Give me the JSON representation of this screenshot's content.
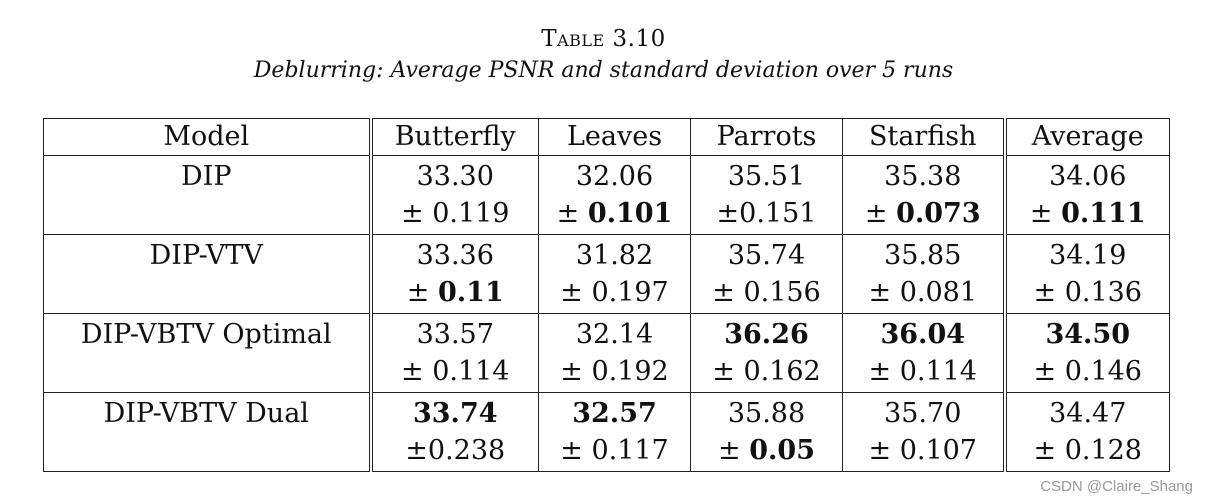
{
  "caption": {
    "label": "Table 3.10",
    "text": "Deblurring: Average PSNR and standard deviation over 5 runs"
  },
  "table": {
    "columns": [
      "Model",
      "Butterfly",
      "Leaves",
      "Parrots",
      "Starfish",
      "Average"
    ],
    "rows": [
      {
        "model": "DIP",
        "cells": [
          {
            "value": "33.30",
            "value_bold": false,
            "sd": "± 0.119",
            "sd_bold": false,
            "sd_pm": "",
            "sd_num": ""
          },
          {
            "value": "32.06",
            "value_bold": false,
            "sd": "",
            "sd_bold": true,
            "sd_pm": "± ",
            "sd_num": "0.101"
          },
          {
            "value": "35.51",
            "value_bold": false,
            "sd": "±0.151",
            "sd_bold": false,
            "sd_pm": "",
            "sd_num": ""
          },
          {
            "value": "35.38",
            "value_bold": false,
            "sd": "",
            "sd_bold": true,
            "sd_pm": "± ",
            "sd_num": "0.073"
          },
          {
            "value": "34.06",
            "value_bold": false,
            "sd": "",
            "sd_bold": true,
            "sd_pm": "± ",
            "sd_num": "0.111"
          }
        ]
      },
      {
        "model": "DIP-VTV",
        "cells": [
          {
            "value": "33.36",
            "value_bold": false,
            "sd": "",
            "sd_bold": true,
            "sd_pm": "± ",
            "sd_num": "0.11"
          },
          {
            "value": "31.82",
            "value_bold": false,
            "sd": "± 0.197",
            "sd_bold": false,
            "sd_pm": "",
            "sd_num": ""
          },
          {
            "value": "35.74",
            "value_bold": false,
            "sd": "± 0.156",
            "sd_bold": false,
            "sd_pm": "",
            "sd_num": ""
          },
          {
            "value": "35.85",
            "value_bold": false,
            "sd": "± 0.081",
            "sd_bold": false,
            "sd_pm": "",
            "sd_num": ""
          },
          {
            "value": "34.19",
            "value_bold": false,
            "sd": "± 0.136",
            "sd_bold": false,
            "sd_pm": "",
            "sd_num": ""
          }
        ]
      },
      {
        "model": "DIP-VBTV Optimal",
        "cells": [
          {
            "value": "33.57",
            "value_bold": false,
            "sd": "± 0.114",
            "sd_bold": false,
            "sd_pm": "",
            "sd_num": ""
          },
          {
            "value": "32.14",
            "value_bold": false,
            "sd": "± 0.192",
            "sd_bold": false,
            "sd_pm": "",
            "sd_num": ""
          },
          {
            "value": "36.26",
            "value_bold": true,
            "sd": "± 0.162",
            "sd_bold": false,
            "sd_pm": "",
            "sd_num": ""
          },
          {
            "value": "36.04",
            "value_bold": true,
            "sd": "± 0.114",
            "sd_bold": false,
            "sd_pm": "",
            "sd_num": ""
          },
          {
            "value": "34.50",
            "value_bold": true,
            "sd": "± 0.146",
            "sd_bold": false,
            "sd_pm": "",
            "sd_num": ""
          }
        ]
      },
      {
        "model": "DIP-VBTV Dual",
        "cells": [
          {
            "value": "33.74",
            "value_bold": true,
            "sd": "±0.238",
            "sd_bold": false,
            "sd_pm": "",
            "sd_num": ""
          },
          {
            "value": "32.57",
            "value_bold": true,
            "sd": "± 0.117",
            "sd_bold": false,
            "sd_pm": "",
            "sd_num": ""
          },
          {
            "value": "35.88",
            "value_bold": false,
            "sd": "",
            "sd_bold": true,
            "sd_pm": "± ",
            "sd_num": "0.05"
          },
          {
            "value": "35.70",
            "value_bold": false,
            "sd": "± 0.107",
            "sd_bold": false,
            "sd_pm": "",
            "sd_num": ""
          },
          {
            "value": "34.47",
            "value_bold": false,
            "sd": "± 0.128",
            "sd_bold": false,
            "sd_pm": "",
            "sd_num": ""
          }
        ]
      }
    ]
  },
  "watermark": "CSDN @Claire_Shang"
}
